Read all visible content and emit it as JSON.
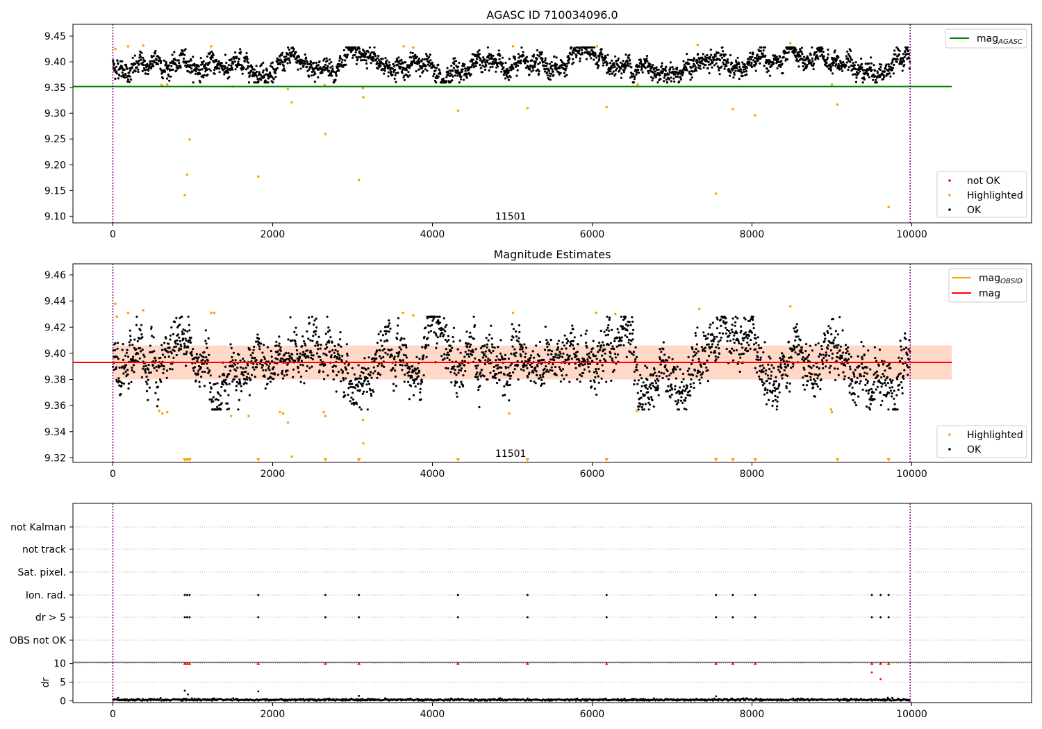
{
  "chart_data": [
    {
      "type": "scatter",
      "title": "AGASC ID 710034096.0",
      "xlim": [
        -500,
        11500
      ],
      "ylim": [
        9.087,
        9.473
      ],
      "xticks": [
        0,
        2000,
        4000,
        6000,
        8000,
        10000
      ],
      "xtick_labels": [
        "0",
        "2000",
        "4000",
        "6000",
        "8000",
        "10000"
      ],
      "yticks": [
        9.1,
        9.15,
        9.2,
        9.25,
        9.3,
        9.35,
        9.4,
        9.45
      ],
      "ytick_labels": [
        "9.10",
        "9.15",
        "9.20",
        "9.25",
        "9.30",
        "9.35",
        "9.40",
        "9.45"
      ],
      "obsid_label": {
        "text": "11501",
        "x": 4980,
        "y": 9.1
      },
      "vlines": [
        0,
        9980
      ],
      "hline": {
        "name": "mag_AGASC",
        "y": 9.352,
        "x_range": [
          -500,
          10500
        ],
        "color": "#008000"
      },
      "ok_band": {
        "x_range": [
          0,
          9980
        ],
        "center": 9.393,
        "spread": 0.011,
        "n": 2600
      },
      "highlighted": [
        {
          "x": 30,
          "y": 9.425
        },
        {
          "x": 190,
          "y": 9.43
        },
        {
          "x": 380,
          "y": 9.432
        },
        {
          "x": 610,
          "y": 9.355
        },
        {
          "x": 680,
          "y": 9.356
        },
        {
          "x": 900,
          "y": 9.141
        },
        {
          "x": 930,
          "y": 9.181
        },
        {
          "x": 960,
          "y": 9.249
        },
        {
          "x": 1230,
          "y": 9.43
        },
        {
          "x": 1500,
          "y": 9.352
        },
        {
          "x": 1820,
          "y": 9.177
        },
        {
          "x": 2190,
          "y": 9.347
        },
        {
          "x": 2240,
          "y": 9.321
        },
        {
          "x": 2650,
          "y": 9.355
        },
        {
          "x": 2660,
          "y": 9.26
        },
        {
          "x": 3080,
          "y": 9.17
        },
        {
          "x": 3130,
          "y": 9.349
        },
        {
          "x": 3135,
          "y": 9.331
        },
        {
          "x": 3640,
          "y": 9.43
        },
        {
          "x": 3760,
          "y": 9.428
        },
        {
          "x": 4320,
          "y": 9.305
        },
        {
          "x": 5010,
          "y": 9.43
        },
        {
          "x": 5190,
          "y": 9.31
        },
        {
          "x": 6060,
          "y": 9.43
        },
        {
          "x": 6180,
          "y": 9.312
        },
        {
          "x": 6570,
          "y": 9.356
        },
        {
          "x": 7320,
          "y": 9.433
        },
        {
          "x": 7550,
          "y": 9.144
        },
        {
          "x": 7760,
          "y": 9.308
        },
        {
          "x": 8040,
          "y": 9.296
        },
        {
          "x": 8480,
          "y": 9.436
        },
        {
          "x": 9000,
          "y": 9.356
        },
        {
          "x": 9070,
          "y": 9.317
        },
        {
          "x": 9710,
          "y": 9.118
        }
      ],
      "legends": [
        {
          "location": "upper right",
          "entries": [
            {
              "label": "mag",
              "subscript": "AGASC",
              "kind": "line",
              "color": "#008000"
            }
          ]
        },
        {
          "location": "lower right",
          "entries": [
            {
              "label": "not OK",
              "kind": "point",
              "color": "#ff0000"
            },
            {
              "label": "Highlighted",
              "kind": "point",
              "color": "#ffa500"
            },
            {
              "label": "OK",
              "kind": "point",
              "color": "#000000"
            }
          ]
        }
      ]
    },
    {
      "type": "scatter",
      "title": "Magnitude Estimates",
      "xlim": [
        -500,
        11500
      ],
      "ylim": [
        9.3165,
        9.4685
      ],
      "xticks": [
        0,
        2000,
        4000,
        6000,
        8000,
        10000
      ],
      "xtick_labels": [
        "0",
        "2000",
        "4000",
        "6000",
        "8000",
        "10000"
      ],
      "yticks": [
        9.32,
        9.34,
        9.36,
        9.38,
        9.4,
        9.42,
        9.44,
        9.46
      ],
      "ytick_labels": [
        "9.32",
        "9.34",
        "9.36",
        "9.38",
        "9.40",
        "9.42",
        "9.44",
        "9.46"
      ],
      "obsid_label": {
        "text": "11501",
        "x": 4980,
        "y": 9.3235
      },
      "vlines": [
        0,
        9980
      ],
      "mag_line": {
        "name": "mag",
        "y": 9.393,
        "x_range": [
          -500,
          10500
        ],
        "color": "#ff0000"
      },
      "mag_band": {
        "y_low": 9.38,
        "y_high": 9.406,
        "x_range": [
          0,
          10500
        ],
        "color": "#ffd8c8"
      },
      "ok_band": {
        "x_range": [
          0,
          9980
        ],
        "center": 9.393,
        "spread": 0.011,
        "n": 2600
      },
      "highlighted": [
        {
          "x": 30,
          "y": 9.438
        },
        {
          "x": 50,
          "y": 9.428
        },
        {
          "x": 190,
          "y": 9.431
        },
        {
          "x": 380,
          "y": 9.433
        },
        {
          "x": 580,
          "y": 9.356
        },
        {
          "x": 620,
          "y": 9.354
        },
        {
          "x": 680,
          "y": 9.355
        },
        {
          "x": 1230,
          "y": 9.431
        },
        {
          "x": 1270,
          "y": 9.431
        },
        {
          "x": 1480,
          "y": 9.352
        },
        {
          "x": 1700,
          "y": 9.352
        },
        {
          "x": 2090,
          "y": 9.355
        },
        {
          "x": 2130,
          "y": 9.354
        },
        {
          "x": 2190,
          "y": 9.347
        },
        {
          "x": 2240,
          "y": 9.321
        },
        {
          "x": 2640,
          "y": 9.355
        },
        {
          "x": 2660,
          "y": 9.352
        },
        {
          "x": 3130,
          "y": 9.349
        },
        {
          "x": 3135,
          "y": 9.331
        },
        {
          "x": 3630,
          "y": 9.431
        },
        {
          "x": 3760,
          "y": 9.429
        },
        {
          "x": 4960,
          "y": 9.354
        },
        {
          "x": 5010,
          "y": 9.431
        },
        {
          "x": 6050,
          "y": 9.431
        },
        {
          "x": 6290,
          "y": 9.43
        },
        {
          "x": 6560,
          "y": 9.356
        },
        {
          "x": 7340,
          "y": 9.434
        },
        {
          "x": 8480,
          "y": 9.436
        },
        {
          "x": 8990,
          "y": 9.357
        },
        {
          "x": 9000,
          "y": 9.355
        }
      ],
      "clipped_markers_x": [
        900,
        930,
        960,
        1820,
        2660,
        3080,
        4320,
        5190,
        6180,
        7550,
        7760,
        8040,
        9070,
        9710
      ],
      "legends": [
        {
          "location": "upper right",
          "entries": [
            {
              "label": "mag",
              "subscript": "OBSID",
              "kind": "line",
              "color": "#ffa500"
            },
            {
              "label": "mag",
              "kind": "line",
              "color": "#ff0000"
            }
          ]
        },
        {
          "location": "lower right",
          "entries": [
            {
              "label": "Highlighted",
              "kind": "point",
              "color": "#ffa500"
            },
            {
              "label": "OK",
              "kind": "point",
              "color": "#000000"
            }
          ]
        }
      ]
    },
    {
      "type": "scatter",
      "title": "",
      "xlim": [
        -500,
        11500
      ],
      "categories": [
        "not Kalman",
        "not track",
        "Sat. pixel.",
        "Ion. rad.",
        "dr > 5",
        "OBS not OK"
      ],
      "flag_points": {
        "Ion. rad.": [
          900,
          930,
          960,
          1820,
          2660,
          3080,
          4320,
          5190,
          6180,
          7550,
          7760,
          8040,
          9500,
          9610,
          9710
        ],
        "dr > 5": [
          900,
          930,
          960,
          1820,
          2660,
          3080,
          4320,
          5190,
          6180,
          7550,
          7760,
          8040,
          9500,
          9610,
          9710
        ]
      },
      "vlines": [
        0,
        9980
      ]
    },
    {
      "type": "scatter",
      "ylabel": "dr",
      "xlim": [
        -500,
        11500
      ],
      "ylim": [
        -0.5,
        10.3
      ],
      "xticks": [
        0,
        2000,
        4000,
        6000,
        8000,
        10000
      ],
      "xtick_labels": [
        "0",
        "2000",
        "4000",
        "6000",
        "8000",
        "10000"
      ],
      "yticks": [
        0,
        5,
        10
      ],
      "ytick_labels": [
        "0",
        "5",
        "10"
      ],
      "vlines": [
        0,
        9980
      ],
      "baseline": {
        "x_range": [
          0,
          9980
        ],
        "center": 0.25,
        "spread": 0.15,
        "n": 1200
      },
      "clipped_at_10_x": [
        900,
        930,
        960,
        1820,
        2660,
        3080,
        4320,
        5190,
        6180,
        7550,
        7760,
        8040,
        9500,
        9610,
        9710
      ],
      "outliers": [
        {
          "x": 900,
          "y": 2.7
        },
        {
          "x": 940,
          "y": 1.7
        },
        {
          "x": 1820,
          "y": 2.5
        },
        {
          "x": 3080,
          "y": 1.3
        },
        {
          "x": 7550,
          "y": 1.2
        },
        {
          "x": 9500,
          "y": 7.6
        },
        {
          "x": 9610,
          "y": 5.8
        },
        {
          "x": 9700,
          "y": 0.8
        }
      ]
    }
  ]
}
